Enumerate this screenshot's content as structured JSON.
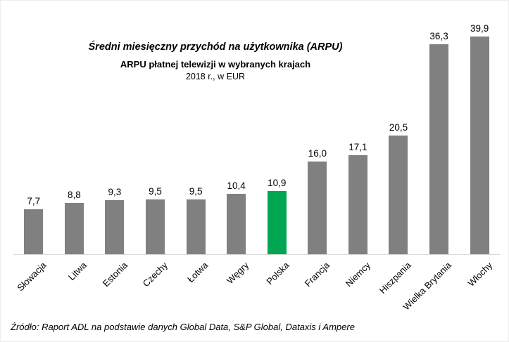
{
  "chart_data": {
    "type": "bar",
    "title": "Średni miesięczny przychód na użytkownika (ARPU)",
    "subtitle": "ARPU płatnej telewizji w wybranych krajach",
    "subtitle2": "2018 r., w EUR",
    "categories": [
      "Słowacja",
      "Litwa",
      "Estonia",
      "Czechy",
      "Łotwa",
      "Węgry",
      "Polska",
      "Francja",
      "Niemcy",
      "Hiszpania",
      "Wielka Brytania",
      "Włochy"
    ],
    "values": [
      7.7,
      8.8,
      9.3,
      9.5,
      9.5,
      10.4,
      10.9,
      16.0,
      17.1,
      20.5,
      36.3,
      39.9
    ],
    "value_labels": [
      "7,7",
      "8,8",
      "9,3",
      "9,5",
      "9,5",
      "10,4",
      "10,9",
      "16,0",
      "17,1",
      "20,5",
      "36,3",
      "39,9"
    ],
    "highlight_category": "Polska",
    "xlabel": "",
    "ylabel": "",
    "ylim": [
      0,
      40
    ],
    "grid": false,
    "legend": false
  },
  "colors": {
    "bar": "#808080",
    "highlight": "#00a651",
    "axis": "#d9d9d9"
  },
  "source": "Źródło: Raport ADL na podstawie danych Global Data, S&P Global, Dataxis i Ampere"
}
